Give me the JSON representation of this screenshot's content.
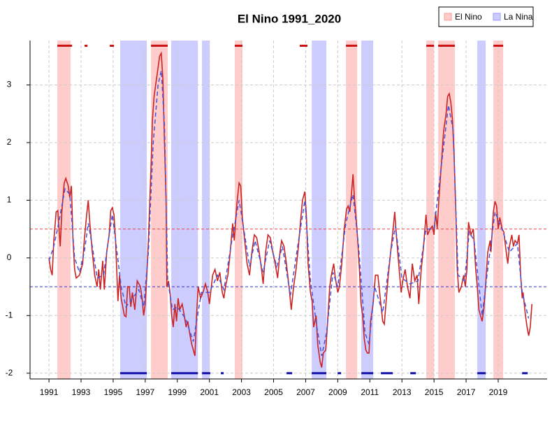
{
  "chart_data": {
    "type": "line",
    "title": "El Nino 1991_2020",
    "xlim": [
      1989.82,
      2022.05
    ],
    "ylim": [
      -2.1,
      3.77
    ],
    "xticks": [
      1991,
      1993,
      1995,
      1997,
      1999,
      2001,
      2003,
      2005,
      2007,
      2009,
      2011,
      2013,
      2015,
      2017,
      2019
    ],
    "yticks": [
      -2,
      -1,
      0,
      1,
      2,
      3
    ],
    "grid": true,
    "legend": "top-right",
    "bands": [
      {
        "name": "El Nino",
        "color": "#ff9999",
        "ranges": [
          [
            1991.52,
            1992.35
          ],
          [
            1997.36,
            1998.4
          ],
          [
            2002.58,
            2003.06
          ],
          [
            2009.51,
            2010.21
          ],
          [
            2014.52,
            2015.0
          ],
          [
            2015.26,
            2016.3
          ],
          [
            2018.7,
            2019.31
          ]
        ]
      },
      {
        "name": "La Nina",
        "color": "#9999ff",
        "ranges": [
          [
            1995.44,
            1997.1
          ],
          [
            1998.62,
            2000.28
          ],
          [
            2000.54,
            2001.02
          ],
          [
            2007.38,
            2008.29
          ],
          [
            2010.47,
            2011.21
          ],
          [
            2017.7,
            2018.22
          ]
        ]
      }
    ],
    "markers": [
      {
        "color": "#cc1111",
        "level": 3.68,
        "ranges": [
          [
            1991.52,
            1992.44
          ],
          [
            1993.22,
            1993.4
          ],
          [
            1994.79,
            1995.05
          ],
          [
            1997.36,
            1998.4
          ],
          [
            2002.58,
            2003.06
          ],
          [
            2006.63,
            2007.11
          ],
          [
            2009.51,
            2010.21
          ],
          [
            2014.52,
            2015.0
          ],
          [
            2015.26,
            2016.3
          ],
          [
            2018.7,
            2019.31
          ]
        ]
      },
      {
        "color": "#1111aa",
        "level": -2.0,
        "ranges": [
          [
            1995.44,
            1997.1
          ],
          [
            1998.62,
            2000.28
          ],
          [
            2000.54,
            2001.06
          ],
          [
            2001.71,
            2001.89
          ],
          [
            2005.81,
            2006.16
          ],
          [
            2007.38,
            2008.29
          ],
          [
            2008.99,
            2009.21
          ],
          [
            2010.47,
            2011.21
          ],
          [
            2011.69,
            2012.43
          ],
          [
            2013.52,
            2013.87
          ],
          [
            2017.7,
            2018.22
          ],
          [
            2020.49,
            2020.84
          ]
        ]
      }
    ],
    "hlines": [
      {
        "value": 0.5,
        "color": "#ee4444"
      },
      {
        "value": -0.5,
        "color": "#3333cc"
      }
    ],
    "series": [
      {
        "color": "#cc2222",
        "dash": false,
        "x": [
          1991.0,
          1991.1,
          1991.2,
          1991.3,
          1991.45,
          1991.55,
          1991.65,
          1991.7,
          1991.8,
          1991.95,
          1992.05,
          1992.2,
          1992.3,
          1992.4,
          1992.5,
          1992.6,
          1992.7,
          1992.9,
          1993.1,
          1993.2,
          1993.35,
          1993.45,
          1993.55,
          1993.7,
          1993.85,
          1994.0,
          1994.1,
          1994.2,
          1994.35,
          1994.45,
          1994.6,
          1994.75,
          1994.85,
          1994.95,
          1995.05,
          1995.15,
          1995.3,
          1995.4,
          1995.5,
          1995.6,
          1995.7,
          1995.8,
          1995.9,
          1996.0,
          1996.1,
          1996.2,
          1996.35,
          1996.5,
          1996.7,
          1996.8,
          1996.9,
          1997.0,
          1997.1,
          1997.2,
          1997.35,
          1997.45,
          1997.55,
          1997.65,
          1997.8,
          1997.9,
          1998.0,
          1998.1,
          1998.2,
          1998.3,
          1998.35,
          1998.45,
          1998.55,
          1998.65,
          1998.75,
          1998.85,
          1998.95,
          1999.05,
          1999.15,
          1999.3,
          1999.4,
          1999.55,
          1999.65,
          1999.8,
          1999.9,
          2000.0,
          2000.1,
          2000.2,
          2000.3,
          2000.45,
          2000.6,
          2000.75,
          2000.9,
          2001.0,
          2001.1,
          2001.2,
          2001.35,
          2001.5,
          2001.65,
          2001.8,
          2001.9,
          2002.0,
          2002.15,
          2002.3,
          2002.45,
          2002.55,
          2002.7,
          2002.85,
          2002.95,
          2003.05,
          2003.2,
          2003.35,
          2003.5,
          2003.65,
          2003.8,
          2003.95,
          2004.1,
          2004.25,
          2004.35,
          2004.5,
          2004.65,
          2004.8,
          2004.95,
          2005.1,
          2005.25,
          2005.4,
          2005.5,
          2005.65,
          2005.8,
          2006.0,
          2006.1,
          2006.25,
          2006.4,
          2006.55,
          2006.7,
          2006.8,
          2006.95,
          2007.05,
          2007.15,
          2007.3,
          2007.4,
          2007.5,
          2007.65,
          2007.75,
          2007.9,
          2008.0,
          2008.1,
          2008.25,
          2008.35,
          2008.5,
          2008.6,
          2008.75,
          2008.85,
          2009.0,
          2009.1,
          2009.25,
          2009.4,
          2009.55,
          2009.65,
          2009.75,
          2009.85,
          2009.95,
          2010.05,
          2010.2,
          2010.35,
          2010.45,
          2010.55,
          2010.65,
          2010.75,
          2010.85,
          2010.95,
          2011.05,
          2011.2,
          2011.35,
          2011.5,
          2011.65,
          2011.8,
          2011.9,
          2012.0,
          2012.15,
          2012.3,
          2012.45,
          2012.55,
          2012.65,
          2012.8,
          2012.95,
          2013.05,
          2013.2,
          2013.35,
          2013.5,
          2013.65,
          2013.8,
          2013.95,
          2014.05,
          2014.2,
          2014.35,
          2014.5,
          2014.6,
          2014.75,
          2014.9,
          2015.0,
          2015.1,
          2015.2,
          2015.3,
          2015.45,
          2015.6,
          2015.75,
          2015.85,
          2015.95,
          2016.05,
          2016.15,
          2016.25,
          2016.35,
          2016.45,
          2016.55,
          2016.7,
          2016.85,
          2016.95,
          2017.05,
          2017.15,
          2017.3,
          2017.45,
          2017.6,
          2017.7,
          2017.8,
          2017.9,
          2018.0,
          2018.1,
          2018.2,
          2018.35,
          2018.5,
          2018.55,
          2018.7,
          2018.8,
          2018.9,
          2019.0,
          2019.1,
          2019.25,
          2019.35,
          2019.5,
          2019.6,
          2019.7,
          2019.85,
          2019.95,
          2020.05,
          2020.2,
          2020.3,
          2020.4,
          2020.5,
          2020.55,
          2020.7,
          2020.8,
          2020.9,
          2021.0,
          2021.1
        ],
        "values": [
          0.0,
          -0.2,
          -0.3,
          0.3,
          0.8,
          0.82,
          0.4,
          0.2,
          0.8,
          1.3,
          1.38,
          1.25,
          1.05,
          1.25,
          0.3,
          -0.2,
          -0.35,
          -0.3,
          -0.1,
          0.3,
          0.75,
          1.0,
          0.6,
          0.1,
          -0.3,
          -0.5,
          -0.2,
          -0.55,
          -0.05,
          -0.55,
          0.1,
          0.4,
          0.82,
          0.87,
          0.75,
          0.3,
          -0.75,
          -0.3,
          -0.7,
          -0.85,
          -1.0,
          -1.02,
          -0.5,
          -0.5,
          -0.85,
          -0.6,
          -0.9,
          -0.4,
          -0.5,
          -0.7,
          -1.0,
          -0.8,
          -0.3,
          0.3,
          1.5,
          2.4,
          2.8,
          3.0,
          3.3,
          3.5,
          3.55,
          3.1,
          2.0,
          1.0,
          -0.5,
          -0.4,
          -0.6,
          -1.0,
          -1.2,
          -0.8,
          -1.1,
          -0.7,
          -0.9,
          -0.8,
          -0.95,
          -1.2,
          -1.1,
          -1.35,
          -1.5,
          -1.6,
          -1.7,
          -1.0,
          -0.5,
          -0.7,
          -0.6,
          -0.45,
          -0.6,
          -0.8,
          -0.55,
          -0.3,
          -0.2,
          -0.4,
          -0.25,
          -0.6,
          -0.7,
          -0.5,
          -0.3,
          0.1,
          0.6,
          0.3,
          0.9,
          1.3,
          1.25,
          0.7,
          0.3,
          -0.1,
          -0.3,
          0.1,
          0.4,
          0.35,
          0.1,
          -0.2,
          -0.45,
          0.1,
          0.4,
          0.35,
          0.1,
          -0.1,
          -0.35,
          0.1,
          0.3,
          0.2,
          -0.1,
          -0.6,
          -0.9,
          -0.5,
          -0.2,
          0.2,
          0.7,
          1.0,
          1.15,
          0.7,
          -0.1,
          -0.6,
          -0.75,
          -1.2,
          -1.0,
          -1.5,
          -1.8,
          -1.9,
          -1.65,
          -1.6,
          -1.2,
          -0.5,
          -0.3,
          -0.1,
          -0.35,
          -0.6,
          -0.5,
          -0.1,
          0.5,
          0.85,
          0.9,
          0.8,
          1.1,
          1.45,
          1.0,
          0.5,
          -0.2,
          -0.8,
          -1.0,
          -1.4,
          -1.6,
          -1.65,
          -1.65,
          -1.1,
          -0.8,
          -0.3,
          -0.3,
          -0.7,
          -1.1,
          -1.15,
          -0.8,
          -0.3,
          0.1,
          0.5,
          0.8,
          0.4,
          -0.1,
          -0.6,
          -0.4,
          -0.2,
          -0.5,
          -0.7,
          -0.1,
          -0.4,
          -0.3,
          -0.8,
          -0.2,
          0.2,
          0.75,
          0.4,
          0.5,
          0.55,
          0.4,
          0.8,
          0.5,
          1.0,
          1.6,
          2.2,
          2.5,
          2.8,
          2.85,
          2.7,
          2.4,
          1.8,
          0.9,
          -0.2,
          -0.6,
          -0.5,
          -0.3,
          -0.5,
          -0.2,
          0.62,
          0.4,
          0.5,
          -0.2,
          -0.5,
          -0.9,
          -1.0,
          -1.1,
          -0.9,
          -0.55,
          0.1,
          0.3,
          0.1,
          0.8,
          0.98,
          0.9,
          0.5,
          0.7,
          0.5,
          0.45,
          0.1,
          -0.1,
          0.2,
          0.4,
          0.2,
          0.3,
          0.25,
          0.4,
          -0.3,
          -0.7,
          -0.6,
          -1.0,
          -1.2,
          -1.35,
          -1.2,
          -0.8
        ]
      },
      {
        "color": "#4455dd",
        "dash": true,
        "x": [
          1991.0,
          1991.3,
          1991.6,
          1992.0,
          1992.3,
          1992.6,
          1992.9,
          1993.2,
          1993.45,
          1993.7,
          1994.0,
          1994.4,
          1994.7,
          1994.95,
          1995.2,
          1995.5,
          1995.8,
          1996.2,
          1996.6,
          1996.9,
          1997.2,
          1997.5,
          1997.8,
          1998.0,
          1998.2,
          1998.4,
          1998.7,
          1999.0,
          1999.5,
          2000.0,
          2000.2,
          2000.5,
          2001.0,
          2001.5,
          2001.9,
          2002.4,
          2002.85,
          2003.2,
          2003.5,
          2003.85,
          2004.35,
          2004.75,
          2005.2,
          2005.55,
          2006.05,
          2006.5,
          2006.95,
          2007.3,
          2007.7,
          2008.0,
          2008.3,
          2008.7,
          2009.0,
          2009.5,
          2009.95,
          2010.3,
          2010.7,
          2010.95,
          2011.3,
          2011.8,
          2012.3,
          2012.6,
          2013.0,
          2013.5,
          2014.0,
          2014.5,
          2015.0,
          2015.5,
          2015.9,
          2016.2,
          2016.5,
          2016.9,
          2017.2,
          2017.5,
          2018.0,
          2018.3,
          2018.8,
          2019.3,
          2019.7,
          2020.2,
          2020.5,
          2020.9
        ],
        "values": [
          -0.05,
          0.2,
          0.6,
          1.2,
          1.1,
          0.0,
          -0.25,
          0.1,
          0.6,
          0.2,
          -0.35,
          -0.3,
          0.3,
          0.75,
          0.2,
          -0.5,
          -0.85,
          -0.7,
          -0.55,
          -0.85,
          0.1,
          2.0,
          3.0,
          3.25,
          2.3,
          -0.4,
          -0.9,
          -0.85,
          -1.05,
          -1.45,
          -1.1,
          -0.6,
          -0.6,
          -0.3,
          -0.55,
          0.3,
          1.0,
          0.4,
          -0.15,
          0.3,
          -0.25,
          0.3,
          -0.15,
          0.2,
          -0.65,
          0.2,
          1.0,
          -0.4,
          -1.2,
          -1.7,
          -1.3,
          -0.25,
          -0.5,
          0.6,
          1.1,
          0.2,
          -1.3,
          -1.5,
          -0.5,
          -0.95,
          0.1,
          0.55,
          -0.35,
          -0.45,
          -0.4,
          0.5,
          0.5,
          1.7,
          2.65,
          2.2,
          -0.3,
          -0.4,
          0.45,
          0.3,
          -1.0,
          -0.3,
          0.8,
          0.45,
          0.1,
          0.25,
          -0.6,
          -1.05
        ]
      }
    ]
  }
}
